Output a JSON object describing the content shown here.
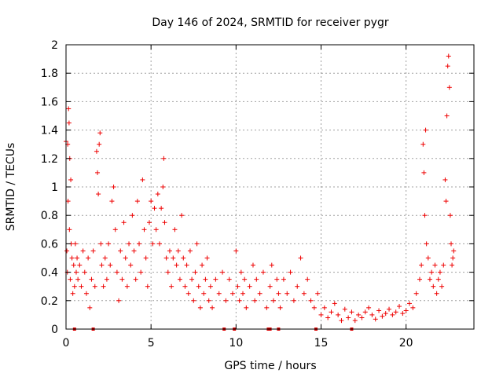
{
  "chart_data": {
    "type": "scatter",
    "title": "Day 146 of 2024, SRMTID for receiver pygr",
    "xlabel": "GPS time / hours",
    "ylabel": "SRMTID / TECUs",
    "xlim": [
      0,
      23.99
    ],
    "ylim": [
      0,
      2
    ],
    "xticks": [
      "0",
      "5",
      "10",
      "15",
      "20"
    ],
    "xtick_values": [
      0,
      5,
      10,
      15,
      20
    ],
    "yticks": [
      "0",
      "0.2",
      "0.4",
      "0.6",
      "0.8",
      "1",
      "1.2",
      "1.4",
      "1.6",
      "1.8",
      "2"
    ],
    "ytick_values": [
      0,
      0.2,
      0.4,
      0.6,
      0.8,
      1.0,
      1.2,
      1.4,
      1.6,
      1.8,
      2.0
    ],
    "grid": true,
    "marker": "plus",
    "color": "#ee0000",
    "series": [
      {
        "name": "SRMTID",
        "points": [
          [
            0.0,
            1.32
          ],
          [
            0.05,
            0.55
          ],
          [
            0.08,
            0.4
          ],
          [
            0.1,
            1.3
          ],
          [
            0.12,
            0.9
          ],
          [
            0.15,
            1.55
          ],
          [
            0.18,
            1.45
          ],
          [
            0.2,
            0.7
          ],
          [
            0.22,
            1.2
          ],
          [
            0.25,
            0.35
          ],
          [
            0.28,
            1.05
          ],
          [
            0.3,
            0.6
          ],
          [
            0.35,
            0.5
          ],
          [
            0.4,
            0.25
          ],
          [
            0.45,
            0.45
          ],
          [
            0.5,
            0.3
          ],
          [
            0.55,
            0.6
          ],
          [
            0.6,
            0.4
          ],
          [
            0.65,
            0.5
          ],
          [
            0.7,
            0.35
          ],
          [
            0.8,
            0.45
          ],
          [
            0.9,
            0.3
          ],
          [
            1.0,
            0.55
          ],
          [
            1.1,
            0.4
          ],
          [
            1.2,
            0.25
          ],
          [
            1.3,
            0.5
          ],
          [
            1.4,
            0.15
          ],
          [
            1.5,
            0.35
          ],
          [
            1.6,
            0.55
          ],
          [
            1.7,
            0.3
          ],
          [
            1.8,
            1.25
          ],
          [
            1.85,
            1.1
          ],
          [
            1.9,
            0.95
          ],
          [
            1.95,
            1.3
          ],
          [
            2.0,
            1.38
          ],
          [
            2.05,
            0.6
          ],
          [
            2.1,
            0.45
          ],
          [
            2.2,
            0.3
          ],
          [
            2.3,
            0.5
          ],
          [
            2.4,
            0.35
          ],
          [
            2.5,
            0.6
          ],
          [
            2.6,
            0.45
          ],
          [
            2.7,
            0.9
          ],
          [
            2.8,
            1.0
          ],
          [
            2.9,
            0.7
          ],
          [
            3.0,
            0.4
          ],
          [
            3.1,
            0.2
          ],
          [
            3.2,
            0.55
          ],
          [
            3.3,
            0.35
          ],
          [
            3.4,
            0.75
          ],
          [
            3.5,
            0.5
          ],
          [
            3.6,
            0.3
          ],
          [
            3.7,
            0.6
          ],
          [
            3.8,
            0.45
          ],
          [
            3.9,
            0.8
          ],
          [
            4.0,
            0.55
          ],
          [
            4.1,
            0.35
          ],
          [
            4.2,
            0.9
          ],
          [
            4.3,
            0.6
          ],
          [
            4.4,
            0.4
          ],
          [
            4.5,
            1.05
          ],
          [
            4.6,
            0.7
          ],
          [
            4.7,
            0.5
          ],
          [
            4.8,
            0.3
          ],
          [
            4.9,
            0.75
          ],
          [
            5.0,
            0.9
          ],
          [
            5.1,
            0.6
          ],
          [
            5.2,
            0.85
          ],
          [
            5.3,
            0.7
          ],
          [
            5.4,
            0.95
          ],
          [
            5.5,
            0.6
          ],
          [
            5.6,
            0.85
          ],
          [
            5.7,
            1.0
          ],
          [
            5.75,
            1.2
          ],
          [
            5.8,
            0.75
          ],
          [
            5.9,
            0.5
          ],
          [
            6.0,
            0.4
          ],
          [
            6.1,
            0.55
          ],
          [
            6.2,
            0.3
          ],
          [
            6.3,
            0.5
          ],
          [
            6.4,
            0.7
          ],
          [
            6.5,
            0.45
          ],
          [
            6.6,
            0.55
          ],
          [
            6.7,
            0.35
          ],
          [
            6.8,
            0.8
          ],
          [
            6.9,
            0.5
          ],
          [
            7.0,
            0.3
          ],
          [
            7.1,
            0.45
          ],
          [
            7.2,
            0.25
          ],
          [
            7.3,
            0.55
          ],
          [
            7.4,
            0.35
          ],
          [
            7.5,
            0.2
          ],
          [
            7.6,
            0.4
          ],
          [
            7.7,
            0.6
          ],
          [
            7.8,
            0.3
          ],
          [
            7.9,
            0.15
          ],
          [
            8.0,
            0.45
          ],
          [
            8.1,
            0.25
          ],
          [
            8.2,
            0.35
          ],
          [
            8.3,
            0.5
          ],
          [
            8.4,
            0.2
          ],
          [
            8.5,
            0.3
          ],
          [
            8.6,
            0.15
          ],
          [
            8.8,
            0.35
          ],
          [
            9.0,
            0.25
          ],
          [
            9.2,
            0.4
          ],
          [
            9.4,
            0.2
          ],
          [
            9.6,
            0.35
          ],
          [
            9.8,
            0.25
          ],
          [
            10.0,
            0.55
          ],
          [
            10.1,
            0.3
          ],
          [
            10.2,
            0.2
          ],
          [
            10.3,
            0.4
          ],
          [
            10.4,
            0.25
          ],
          [
            10.5,
            0.35
          ],
          [
            10.6,
            0.15
          ],
          [
            10.8,
            0.3
          ],
          [
            11.0,
            0.45
          ],
          [
            11.1,
            0.2
          ],
          [
            11.2,
            0.35
          ],
          [
            11.4,
            0.25
          ],
          [
            11.6,
            0.4
          ],
          [
            11.8,
            0.15
          ],
          [
            12.0,
            0.3
          ],
          [
            12.1,
            0.45
          ],
          [
            12.2,
            0.2
          ],
          [
            12.4,
            0.35
          ],
          [
            12.5,
            0.25
          ],
          [
            12.6,
            0.15
          ],
          [
            12.8,
            0.35
          ],
          [
            13.0,
            0.25
          ],
          [
            13.2,
            0.4
          ],
          [
            13.4,
            0.2
          ],
          [
            13.6,
            0.3
          ],
          [
            13.8,
            0.5
          ],
          [
            14.0,
            0.25
          ],
          [
            14.2,
            0.35
          ],
          [
            14.4,
            0.2
          ],
          [
            14.6,
            0.15
          ],
          [
            14.8,
            0.25
          ],
          [
            15.0,
            0.1
          ],
          [
            15.2,
            0.15
          ],
          [
            15.4,
            0.08
          ],
          [
            15.6,
            0.12
          ],
          [
            15.8,
            0.18
          ],
          [
            16.0,
            0.1
          ],
          [
            16.2,
            0.06
          ],
          [
            16.4,
            0.14
          ],
          [
            16.6,
            0.08
          ],
          [
            16.8,
            0.12
          ],
          [
            17.0,
            0.06
          ],
          [
            17.2,
            0.1
          ],
          [
            17.4,
            0.08
          ],
          [
            17.6,
            0.12
          ],
          [
            17.8,
            0.15
          ],
          [
            18.0,
            0.1
          ],
          [
            18.2,
            0.07
          ],
          [
            18.4,
            0.13
          ],
          [
            18.6,
            0.09
          ],
          [
            18.8,
            0.11
          ],
          [
            19.0,
            0.14
          ],
          [
            19.2,
            0.1
          ],
          [
            19.4,
            0.12
          ],
          [
            19.6,
            0.16
          ],
          [
            19.8,
            0.11
          ],
          [
            20.0,
            0.13
          ],
          [
            20.2,
            0.18
          ],
          [
            20.4,
            0.15
          ],
          [
            20.6,
            0.25
          ],
          [
            20.8,
            0.35
          ],
          [
            20.9,
            0.45
          ],
          [
            21.0,
            1.3
          ],
          [
            21.05,
            1.1
          ],
          [
            21.1,
            0.8
          ],
          [
            21.15,
            1.4
          ],
          [
            21.2,
            0.6
          ],
          [
            21.3,
            0.5
          ],
          [
            21.4,
            0.35
          ],
          [
            21.5,
            0.4
          ],
          [
            21.6,
            0.3
          ],
          [
            21.7,
            0.45
          ],
          [
            21.8,
            0.25
          ],
          [
            21.9,
            0.35
          ],
          [
            22.0,
            0.4
          ],
          [
            22.1,
            0.3
          ],
          [
            22.2,
            0.45
          ],
          [
            22.3,
            1.05
          ],
          [
            22.35,
            0.9
          ],
          [
            22.4,
            1.5
          ],
          [
            22.45,
            1.85
          ],
          [
            22.5,
            1.92
          ],
          [
            22.55,
            1.7
          ],
          [
            22.6,
            0.8
          ],
          [
            22.65,
            0.6
          ],
          [
            22.7,
            0.45
          ],
          [
            22.75,
            0.5
          ],
          [
            22.8,
            0.55
          ]
        ]
      }
    ],
    "gap_markers_x": [
      0.5,
      1.6,
      9.3,
      9.9,
      11.9,
      12.0,
      12.5,
      14.7,
      16.8
    ],
    "gap_markers_y": 0
  }
}
